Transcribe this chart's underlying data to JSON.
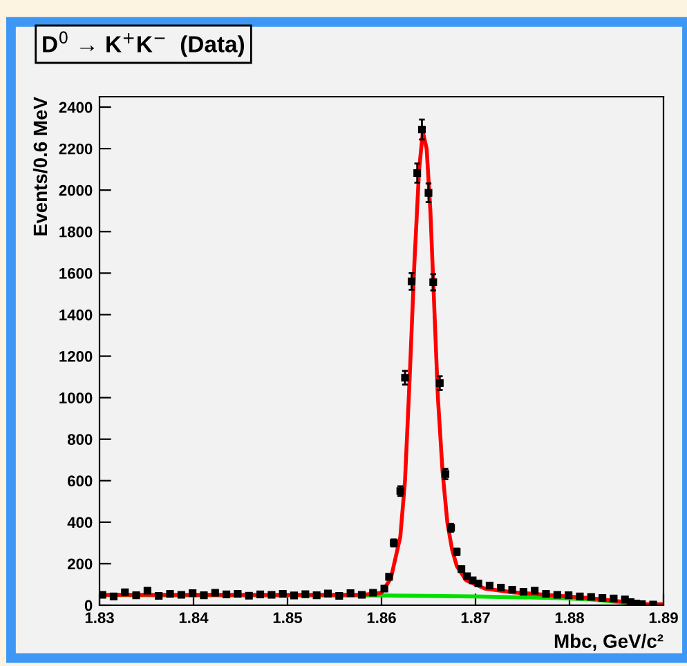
{
  "chart_data": {
    "type": "scatter",
    "title": "D$^{0}$ → K$^{+}$K$^{−}$  (Data)",
    "xlabel": "Mbc, GeV/c²",
    "ylabel": "Events/0.6 MeV",
    "xlim": [
      1.83,
      1.89
    ],
    "xticks": [
      1.83,
      1.84,
      1.85,
      1.86,
      1.87,
      1.88,
      1.89
    ],
    "ylim": [
      0,
      2450
    ],
    "yticks": [
      0,
      200,
      400,
      600,
      800,
      1000,
      1200,
      1400,
      1600,
      1800,
      2000,
      2200,
      2400
    ],
    "grid": false,
    "series": [
      {
        "marker": "square",
        "color": "#000000",
        "x": [
          1.8303,
          1.8315,
          1.8327,
          1.8339,
          1.8351,
          1.8363,
          1.8375,
          1.8387,
          1.8399,
          1.8411,
          1.8423,
          1.8435,
          1.8447,
          1.8459,
          1.8471,
          1.8483,
          1.8495,
          1.8507,
          1.8519,
          1.8531,
          1.8543,
          1.8555,
          1.8567,
          1.8579,
          1.8591,
          1.8603,
          1.8608,
          1.8613,
          1.862,
          1.8625,
          1.8632,
          1.8638,
          1.8643,
          1.865,
          1.8655,
          1.8662,
          1.8668,
          1.8674,
          1.868,
          1.8685,
          1.8691,
          1.8697,
          1.8703,
          1.8715,
          1.8727,
          1.8739,
          1.8751,
          1.8763,
          1.8775,
          1.8787,
          1.8799,
          1.8811,
          1.8823,
          1.8835,
          1.8847,
          1.8859,
          1.8865,
          1.8871,
          1.8877,
          1.8889
        ],
        "values": [
          50,
          42,
          62,
          48,
          70,
          45,
          55,
          50,
          58,
          48,
          60,
          52,
          55,
          46,
          52,
          50,
          55,
          47,
          53,
          48,
          56,
          45,
          58,
          50,
          60,
          80,
          137,
          300,
          550,
          1096,
          1560,
          2082,
          2292,
          1987,
          1556,
          1070,
          632,
          373,
          257,
          174,
          140,
          120,
          105,
          95,
          85,
          75,
          65,
          70,
          55,
          50,
          48,
          42,
          40,
          35,
          32,
          28,
          15,
          8,
          5,
          3
        ],
        "errors": [
          7,
          7,
          8,
          7,
          8,
          7,
          7,
          7,
          8,
          7,
          8,
          7,
          7,
          7,
          7,
          7,
          7,
          7,
          7,
          7,
          8,
          7,
          8,
          7,
          8,
          9,
          12,
          17,
          23,
          33,
          40,
          46,
          48,
          45,
          39,
          33,
          25,
          19,
          16,
          13,
          12,
          11,
          10,
          10,
          9,
          9,
          8,
          8,
          7,
          7,
          7,
          7,
          6,
          6,
          6,
          5,
          4,
          3,
          2,
          2
        ]
      },
      {
        "type": "line",
        "color": "#00e000",
        "x": [
          1.83,
          1.86,
          1.87,
          1.878,
          1.882,
          1.886,
          1.8865,
          1.89
        ],
        "values": [
          48,
          47,
          42,
          35,
          28,
          12,
          0,
          0
        ]
      },
      {
        "type": "line",
        "color": "#ff0000",
        "x": [
          1.83,
          1.858,
          1.86,
          1.861,
          1.862,
          1.8625,
          1.863,
          1.8635,
          1.864,
          1.8644,
          1.8648,
          1.8652,
          1.8656,
          1.866,
          1.8665,
          1.867,
          1.8675,
          1.868,
          1.869,
          1.871,
          1.874,
          1.878,
          1.882,
          1.886,
          1.8865,
          1.89
        ],
        "values": [
          50,
          50,
          60,
          130,
          330,
          600,
          1100,
          1650,
          2100,
          2280,
          2200,
          1900,
          1450,
          1000,
          640,
          400,
          270,
          190,
          120,
          80,
          62,
          48,
          35,
          15,
          5,
          5
        ]
      }
    ]
  }
}
